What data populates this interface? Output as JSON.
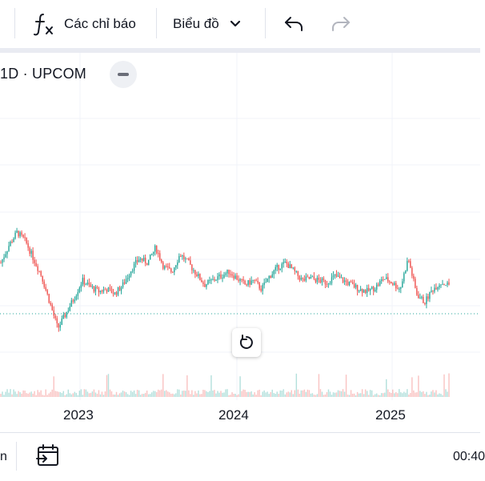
{
  "toolbar": {
    "indicators_label": "Các chỉ báo",
    "chart_type_label": "Biểu đồ",
    "icons": [
      "fx-icon",
      "chevron-down-icon",
      "undo-icon",
      "redo-icon"
    ]
  },
  "legend": {
    "text": "1D · UPCOM"
  },
  "x_axis": {
    "years": [
      "2023",
      "2024",
      "2025"
    ]
  },
  "bottom": {
    "left_text": "n",
    "time_text": "00:40"
  },
  "colors": {
    "up": "#26a69a",
    "down": "#ef5350",
    "grid": "#f0f3fa",
    "dotted_line": "#26a69a"
  },
  "chart_data": {
    "type": "candlestick",
    "interval": "1D",
    "exchange": "UPCOM",
    "x_tick_labels": [
      "2023",
      "2024",
      "2025"
    ],
    "grid": true,
    "series_shape": [
      0.48,
      0.56,
      0.62,
      0.58,
      0.5,
      0.42,
      0.3,
      0.18,
      0.25,
      0.32,
      0.4,
      0.37,
      0.35,
      0.36,
      0.34,
      0.38,
      0.45,
      0.5,
      0.48,
      0.55,
      0.46,
      0.44,
      0.52,
      0.48,
      0.43,
      0.38,
      0.4,
      0.42,
      0.44,
      0.41,
      0.38,
      0.4,
      0.36,
      0.42,
      0.46,
      0.48,
      0.44,
      0.4,
      0.41,
      0.4,
      0.39,
      0.42,
      0.4,
      0.38,
      0.36,
      0.35,
      0.37,
      0.41,
      0.39,
      0.36,
      0.5,
      0.34,
      0.3,
      0.36,
      0.39,
      0.38
    ]
  }
}
